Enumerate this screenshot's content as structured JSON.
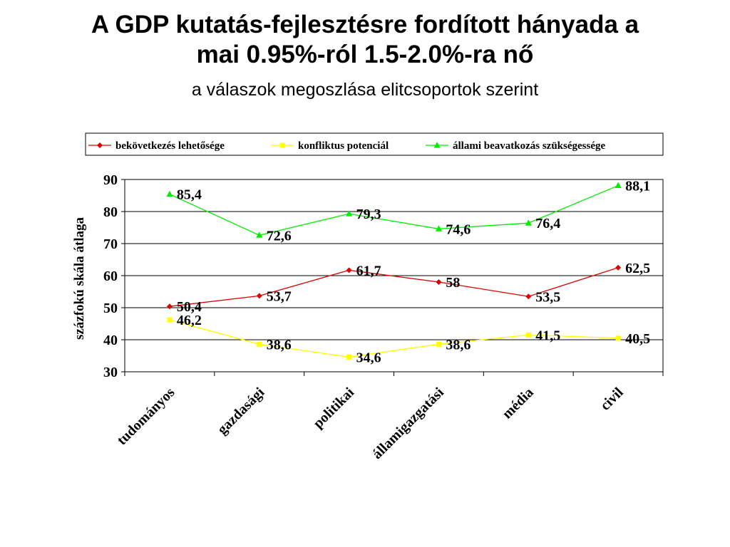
{
  "title_line1": "A GDP kutatás-fejlesztésre fordított hányada a",
  "title_line2": "mai 0.95%-ról 1.5-2.0%-ra nő",
  "subtitle": "a válaszok megoszlása elitcsoportok szerint",
  "chart_data": {
    "type": "line",
    "ylabel": "százfokú skála átlaga",
    "ylim": [
      30,
      90
    ],
    "yticks": [
      30,
      40,
      50,
      60,
      70,
      80,
      90
    ],
    "grid": true,
    "legend_position": "top",
    "categories": [
      "tudományos",
      "gazdasági",
      "politikai",
      "államigazgatási",
      "média",
      "civil"
    ],
    "series": [
      {
        "name": "bekövetkezés lehetősége",
        "color": "#dd0000",
        "marker": "diamond",
        "values": [
          50.4,
          53.7,
          61.7,
          58,
          53.5,
          62.5
        ],
        "labels": [
          "50,4",
          "53,7",
          "61,7",
          "58",
          "53,5",
          "62,5"
        ]
      },
      {
        "name": "konfliktus potenciál",
        "color": "#ffff00",
        "marker": "square",
        "values": [
          46.2,
          38.6,
          34.6,
          38.6,
          41.5,
          40.5
        ],
        "labels": [
          "46,2",
          "38,6",
          "34,6",
          "38,6",
          "41,5",
          "40,5"
        ]
      },
      {
        "name": "állami beavatkozás szükségessége",
        "color": "#00ee00",
        "marker": "triangle",
        "values": [
          85.4,
          72.6,
          79.3,
          74.6,
          76.4,
          88.1
        ],
        "labels": [
          "85,4",
          "72,6",
          "79,3",
          "74,6",
          "76,4",
          "88,1"
        ]
      }
    ]
  }
}
